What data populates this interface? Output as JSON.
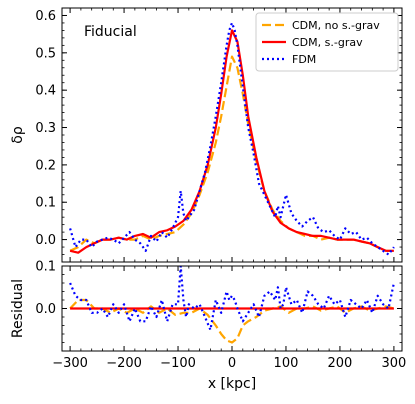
{
  "chart_data": [
    {
      "panel": "main",
      "type": "line",
      "annotation": "Fiducial",
      "xlabel": "",
      "ylabel": "δρ",
      "xlim": [
        -315,
        315
      ],
      "ylim": [
        -0.06,
        0.62
      ],
      "yticks": [
        0.0,
        0.1,
        0.2,
        0.3,
        0.4,
        0.5,
        0.6
      ],
      "ytick_labels": [
        "0.0",
        "0.1",
        "0.2",
        "0.3",
        "0.4",
        "0.5",
        "0.6"
      ],
      "xticks": [
        -300,
        -200,
        -100,
        0,
        100,
        200,
        300
      ],
      "legend_position": "top-right",
      "series": [
        {
          "name": "CDM, no s.-grav",
          "color": "#FFA500",
          "style": "dashed",
          "x": [
            -300,
            -285,
            -270,
            -255,
            -240,
            -225,
            -210,
            -195,
            -180,
            -165,
            -150,
            -135,
            -120,
            -105,
            -90,
            -75,
            -60,
            -45,
            -30,
            -20,
            -10,
            0,
            10,
            20,
            30,
            45,
            60,
            75,
            90,
            105,
            120,
            135,
            150,
            165,
            180,
            195,
            210,
            225,
            240,
            255,
            270,
            285,
            300
          ],
          "y": [
            -0.03,
            -0.02,
            0.0,
            -0.01,
            0.0,
            0.0,
            0.005,
            0.0,
            0.0,
            0.01,
            0.0,
            0.01,
            0.015,
            0.02,
            0.04,
            0.07,
            0.12,
            0.18,
            0.26,
            0.33,
            0.41,
            0.49,
            0.46,
            0.39,
            0.31,
            0.21,
            0.13,
            0.08,
            0.05,
            0.03,
            0.02,
            0.01,
            0.01,
            0.0,
            0.005,
            0.0,
            0.0,
            0.0,
            -0.005,
            -0.01,
            -0.02,
            -0.03,
            -0.03
          ]
        },
        {
          "name": "CDM, s.-grav",
          "color": "#FF0000",
          "style": "solid",
          "x": [
            -300,
            -285,
            -270,
            -255,
            -240,
            -225,
            -210,
            -195,
            -180,
            -165,
            -150,
            -135,
            -120,
            -105,
            -90,
            -75,
            -60,
            -45,
            -30,
            -20,
            -10,
            0,
            10,
            20,
            30,
            45,
            60,
            75,
            90,
            105,
            120,
            135,
            150,
            165,
            180,
            195,
            210,
            225,
            240,
            255,
            270,
            285,
            300
          ],
          "y": [
            -0.03,
            -0.035,
            -0.02,
            -0.01,
            0.0,
            0.0,
            0.005,
            0.0,
            0.01,
            0.015,
            0.005,
            0.02,
            0.025,
            0.035,
            0.05,
            0.08,
            0.13,
            0.2,
            0.3,
            0.39,
            0.49,
            0.56,
            0.53,
            0.44,
            0.33,
            0.22,
            0.13,
            0.075,
            0.045,
            0.03,
            0.02,
            0.015,
            0.01,
            0.01,
            0.005,
            0.0,
            0.0,
            0.0,
            -0.005,
            -0.01,
            -0.02,
            -0.03,
            -0.03
          ]
        },
        {
          "name": "FDM",
          "color": "#0000FF",
          "style": "dotted",
          "x": [
            -300,
            -290,
            -280,
            -270,
            -260,
            -250,
            -240,
            -230,
            -220,
            -210,
            -200,
            -190,
            -180,
            -170,
            -160,
            -150,
            -140,
            -130,
            -120,
            -110,
            -100,
            -95,
            -90,
            -85,
            -80,
            -70,
            -60,
            -50,
            -40,
            -30,
            -20,
            -10,
            -5,
            0,
            5,
            10,
            20,
            30,
            40,
            50,
            60,
            70,
            80,
            85,
            90,
            95,
            100,
            110,
            120,
            130,
            140,
            150,
            160,
            170,
            180,
            190,
            200,
            210,
            220,
            230,
            240,
            250,
            260,
            270,
            280,
            290,
            300
          ],
          "y": [
            0.03,
            -0.02,
            0.0,
            0.0,
            -0.02,
            -0.005,
            0.0,
            0.005,
            0.0,
            -0.01,
            0.005,
            0.02,
            0.0,
            -0.01,
            -0.03,
            0.01,
            -0.005,
            0.02,
            0.005,
            0.03,
            0.06,
            0.13,
            0.07,
            0.05,
            0.06,
            0.08,
            0.13,
            0.18,
            0.25,
            0.33,
            0.42,
            0.52,
            0.56,
            0.58,
            0.56,
            0.52,
            0.41,
            0.3,
            0.23,
            0.15,
            0.12,
            0.09,
            0.06,
            0.09,
            0.06,
            0.09,
            0.12,
            0.07,
            0.05,
            0.035,
            0.05,
            0.06,
            0.03,
            0.02,
            0.025,
            0.01,
            0.0,
            0.03,
            0.015,
            0.02,
            0.0,
            0.005,
            -0.01,
            -0.02,
            -0.03,
            -0.04,
            -0.02
          ]
        }
      ]
    },
    {
      "panel": "residual",
      "type": "line",
      "xlabel": "x [kpc]",
      "ylabel": "Residual",
      "xlim": [
        -315,
        315
      ],
      "ylim": [
        -0.1,
        0.1
      ],
      "yticks": [
        -0.1,
        0.0,
        0.1
      ],
      "ytick_labels": [
        "",
        "0.0",
        "0.1"
      ],
      "xticks": [
        -300,
        -200,
        -100,
        0,
        100,
        200,
        300
      ],
      "xtick_labels": [
        "−300",
        "−200",
        "−100",
        "0",
        "100",
        "200",
        "300"
      ],
      "series": [
        {
          "name": "CDM, no s.-grav",
          "color": "#FFA500",
          "style": "dashed",
          "x": [
            -300,
            -285,
            -270,
            -255,
            -240,
            -225,
            -210,
            -195,
            -180,
            -165,
            -150,
            -135,
            -120,
            -105,
            -90,
            -75,
            -60,
            -45,
            -30,
            -20,
            -10,
            0,
            10,
            20,
            30,
            45,
            60,
            75,
            90,
            105,
            120,
            135,
            150,
            165,
            180,
            195,
            210,
            225,
            240,
            255,
            270,
            285,
            300
          ],
          "y": [
            0.0,
            0.02,
            0.02,
            0.0,
            0.0,
            -0.01,
            0.0,
            -0.01,
            0.0,
            -0.01,
            0.005,
            -0.01,
            0.0,
            -0.015,
            -0.01,
            -0.01,
            0.0,
            -0.015,
            -0.04,
            -0.06,
            -0.075,
            -0.08,
            -0.07,
            -0.04,
            -0.03,
            -0.02,
            -0.005,
            0.0,
            0.005,
            -0.01,
            0.0,
            0.0,
            0.005,
            -0.005,
            0.0,
            0.005,
            -0.01,
            0.0,
            0.005,
            -0.005,
            0.0,
            0.005,
            0.0
          ]
        },
        {
          "name": "CDM, s.-grav",
          "color": "#FF0000",
          "style": "solid",
          "x": [
            -300,
            300
          ],
          "y": [
            0.0,
            0.0
          ]
        },
        {
          "name": "FDM",
          "color": "#0000FF",
          "style": "dotted",
          "x": [
            -300,
            -290,
            -280,
            -270,
            -260,
            -250,
            -240,
            -230,
            -220,
            -210,
            -200,
            -190,
            -180,
            -170,
            -160,
            -150,
            -140,
            -130,
            -120,
            -110,
            -100,
            -95,
            -90,
            -85,
            -80,
            -70,
            -60,
            -50,
            -40,
            -30,
            -20,
            -10,
            -5,
            0,
            5,
            10,
            20,
            30,
            40,
            50,
            60,
            70,
            80,
            85,
            90,
            95,
            100,
            110,
            120,
            130,
            140,
            150,
            160,
            170,
            180,
            190,
            200,
            210,
            220,
            230,
            240,
            250,
            260,
            270,
            280,
            290,
            300
          ],
          "y": [
            0.06,
            0.03,
            0.02,
            0.02,
            -0.01,
            -0.01,
            0.0,
            -0.02,
            0.01,
            -0.01,
            0.01,
            -0.03,
            0.0,
            -0.03,
            -0.03,
            0.005,
            -0.02,
            0.02,
            -0.03,
            0.01,
            0.01,
            0.1,
            0.02,
            -0.02,
            0.01,
            0.0,
            0.01,
            -0.02,
            -0.05,
            0.02,
            -0.01,
            0.04,
            0.02,
            0.03,
            0.02,
            0.0,
            -0.03,
            -0.01,
            0.01,
            -0.02,
            0.03,
            0.04,
            0.02,
            0.05,
            0.0,
            0.01,
            0.05,
            0.01,
            0.02,
            -0.01,
            0.04,
            0.03,
            0.01,
            0.0,
            0.03,
            0.01,
            0.02,
            -0.02,
            0.02,
            0.01,
            0.0,
            0.02,
            -0.01,
            0.03,
            0.01,
            0.0,
            0.06
          ]
        }
      ]
    }
  ]
}
